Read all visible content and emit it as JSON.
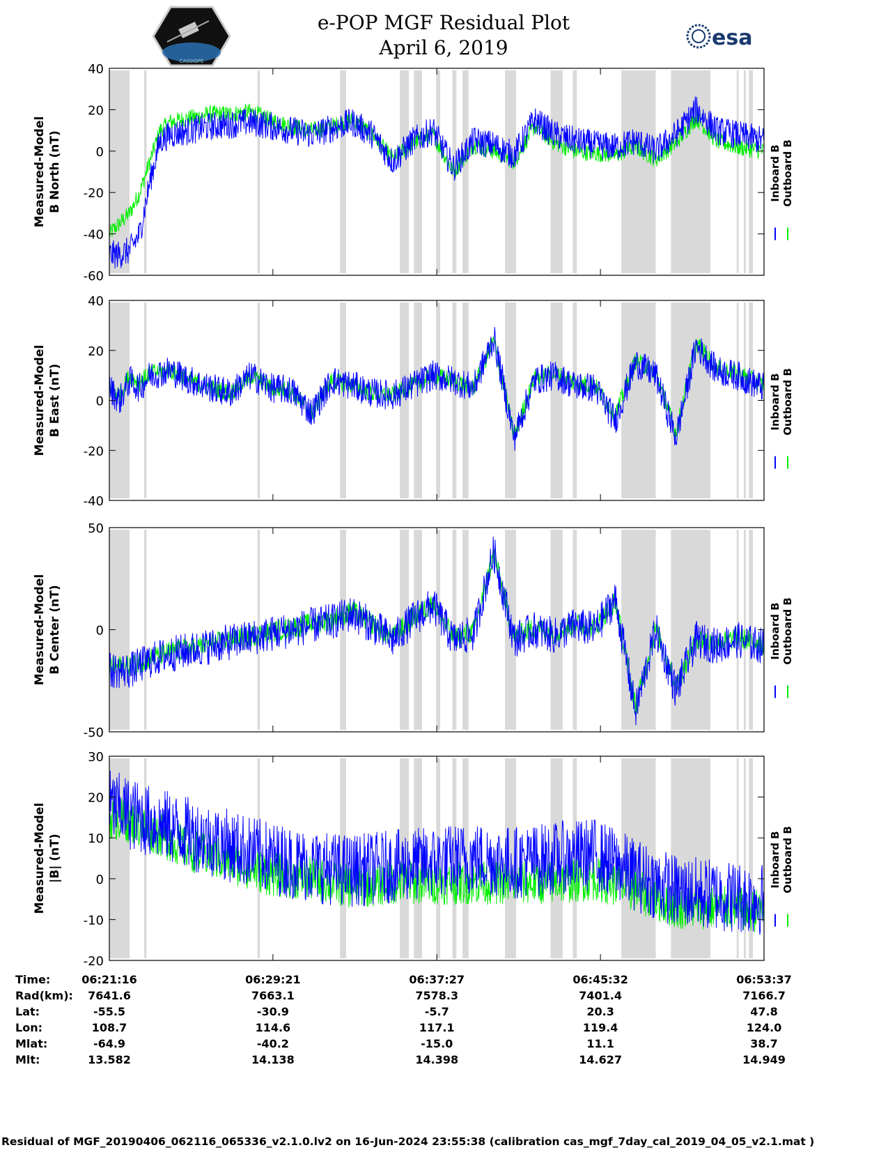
{
  "header": {
    "title": "e-POP MGF Residual Plot",
    "date": "April 6, 2019",
    "left_logo_icon": "cassiope-hexagon-logo-icon",
    "left_logo_text": "CASSIOPE",
    "right_logo_icon": "esa-logo-icon",
    "right_logo_text": "esa"
  },
  "colors": {
    "inboard": "#0000ff",
    "outboard": "#00ee00",
    "gap_shading": "#d9d9d9"
  },
  "legend": {
    "inboard": "Inboard B",
    "outboard": "Outboard B"
  },
  "chart_data": [
    {
      "type": "line",
      "ylabel_line1": "Measured-Model",
      "ylabel_line2": "B North (nT)",
      "ylim": [
        -60,
        40
      ],
      "yticks": [
        -60,
        -40,
        -20,
        0,
        20,
        40
      ],
      "ytick_labels": [
        "-60",
        "-40",
        "-20",
        "0",
        "20",
        "40"
      ],
      "xlim": [
        0,
        32.35
      ],
      "series": [
        {
          "name": "Inboard B",
          "x": [
            0,
            0.5,
            1,
            1.5,
            2,
            2.5,
            3,
            4,
            5,
            6,
            7,
            8,
            9,
            10,
            11,
            12,
            13,
            14,
            15,
            16,
            17,
            18,
            19,
            20,
            21,
            22,
            23,
            24,
            25,
            26,
            27,
            28,
            29,
            30,
            31,
            32.35
          ],
          "y": [
            -50,
            -50,
            -48,
            -40,
            -15,
            5,
            8,
            10,
            12,
            13,
            14,
            12,
            10,
            8,
            11,
            14,
            8,
            -5,
            5,
            10,
            -8,
            5,
            3,
            -2,
            15,
            8,
            5,
            3,
            2,
            5,
            0,
            8,
            20,
            10,
            8,
            5
          ]
        },
        {
          "name": "Outboard B",
          "x": [
            0,
            0.5,
            1,
            1.5,
            2,
            2.5,
            3,
            4,
            5,
            6,
            7,
            8,
            9,
            10,
            11,
            12,
            13,
            14,
            15,
            16,
            17,
            18,
            19,
            20,
            21,
            22,
            23,
            24,
            25,
            26,
            27,
            28,
            29,
            30,
            31,
            32.35
          ],
          "y": [
            -40,
            -35,
            -30,
            -20,
            -5,
            10,
            14,
            16,
            18,
            18,
            19,
            15,
            12,
            10,
            12,
            15,
            8,
            -4,
            4,
            8,
            -10,
            3,
            0,
            -5,
            12,
            4,
            0,
            -1,
            -2,
            2,
            -4,
            4,
            16,
            5,
            2,
            0
          ]
        }
      ]
    },
    {
      "type": "line",
      "ylabel_line1": "Measured-Model",
      "ylabel_line2": "B East (nT)",
      "ylim": [
        -40,
        40
      ],
      "yticks": [
        -40,
        -20,
        0,
        20,
        40
      ],
      "ytick_labels": [
        "-40",
        "-20",
        "0",
        "20",
        "40"
      ],
      "xlim": [
        0,
        32.35
      ],
      "series": [
        {
          "name": "Inboard B",
          "x": [
            0,
            0.5,
            1,
            1.5,
            2,
            3,
            4,
            5,
            6,
            7,
            8,
            9,
            10,
            11,
            12,
            13,
            14,
            15,
            16,
            17,
            18,
            19,
            20,
            21,
            22,
            23,
            24,
            25,
            26,
            27,
            28,
            29,
            30,
            31,
            32.35
          ],
          "y": [
            5,
            0,
            8,
            5,
            10,
            12,
            8,
            5,
            3,
            10,
            5,
            4,
            -5,
            8,
            6,
            3,
            2,
            6,
            10,
            8,
            5,
            25,
            -15,
            8,
            10,
            6,
            5,
            -8,
            15,
            10,
            -15,
            22,
            12,
            10,
            5
          ]
        },
        {
          "name": "Outboard B",
          "x": [
            0,
            0.5,
            1,
            1.5,
            2,
            3,
            4,
            5,
            6,
            7,
            8,
            9,
            10,
            11,
            12,
            13,
            14,
            15,
            16,
            17,
            18,
            19,
            20,
            21,
            22,
            23,
            24,
            25,
            26,
            27,
            28,
            29,
            30,
            31,
            32.35
          ],
          "y": [
            6,
            2,
            10,
            7,
            11,
            12,
            8,
            5,
            3,
            10,
            5,
            4,
            -5,
            8,
            6,
            3,
            2,
            6,
            10,
            8,
            5,
            24,
            -14,
            9,
            11,
            7,
            6,
            -6,
            16,
            11,
            -13,
            23,
            13,
            11,
            6
          ]
        }
      ]
    },
    {
      "type": "line",
      "ylabel_line1": "Measured-Model",
      "ylabel_line2": "B Center (nT)",
      "ylim": [
        -50,
        50
      ],
      "yticks": [
        -50,
        0,
        50
      ],
      "ytick_labels": [
        "-50",
        "0",
        "50"
      ],
      "xlim": [
        0,
        32.35
      ],
      "series": [
        {
          "name": "Inboard B",
          "x": [
            0,
            1,
            2,
            3,
            4,
            5,
            6,
            7,
            8,
            9,
            10,
            11,
            12,
            13,
            14,
            15,
            16,
            17,
            18,
            19,
            20,
            21,
            22,
            23,
            24,
            25,
            26,
            27,
            28,
            29,
            30,
            31,
            32.35
          ],
          "y": [
            -20,
            -20,
            -15,
            -12,
            -10,
            -8,
            -6,
            -4,
            -2,
            0,
            2,
            4,
            8,
            2,
            -5,
            5,
            12,
            -5,
            -2,
            38,
            -5,
            0,
            -3,
            2,
            0,
            15,
            -40,
            0,
            -30,
            -5,
            -8,
            -5,
            -8
          ]
        },
        {
          "name": "Outboard B",
          "x": [
            0,
            1,
            2,
            3,
            4,
            5,
            6,
            7,
            8,
            9,
            10,
            11,
            12,
            13,
            14,
            15,
            16,
            17,
            18,
            19,
            20,
            21,
            22,
            23,
            24,
            25,
            26,
            27,
            28,
            29,
            30,
            31,
            32.35
          ],
          "y": [
            -18,
            -18,
            -14,
            -11,
            -9,
            -7,
            -5,
            -3,
            -1,
            1,
            3,
            5,
            9,
            3,
            -4,
            6,
            13,
            -4,
            -1,
            37,
            -4,
            1,
            -2,
            3,
            1,
            14,
            -38,
            1,
            -28,
            -4,
            -7,
            -4,
            -7
          ]
        }
      ]
    },
    {
      "type": "line",
      "ylabel_line1": "Measured-Model",
      "ylabel_line2": "|B| (nT)",
      "ylim": [
        -20,
        30
      ],
      "yticks": [
        -20,
        -10,
        0,
        10,
        20,
        30
      ],
      "ytick_labels": [
        "-20",
        "-10",
        "0",
        "10",
        "20",
        "30"
      ],
      "xlim": [
        0,
        32.35
      ],
      "series": [
        {
          "name": "Inboard B",
          "x": [
            0,
            1,
            2,
            4,
            6,
            8,
            10,
            12,
            14,
            16,
            18,
            20,
            22,
            24,
            26,
            28,
            30,
            32.35
          ],
          "y": [
            18,
            16,
            14,
            11,
            8,
            5,
            3,
            2,
            3,
            4,
            5,
            4,
            5,
            6,
            1,
            -3,
            -4,
            -5
          ]
        },
        {
          "name": "Outboard B",
          "x": [
            0,
            1,
            2,
            4,
            6,
            8,
            10,
            12,
            14,
            16,
            18,
            20,
            22,
            24,
            26,
            28,
            30,
            32.35
          ],
          "y": [
            15,
            14,
            12,
            7,
            4,
            1,
            0,
            -2,
            -1,
            -1,
            -1,
            -1,
            -1,
            0,
            -3,
            -7,
            -7,
            -8
          ]
        }
      ]
    }
  ],
  "gaps_minutes": [
    [
      0,
      1.0
    ],
    [
      1.72,
      1.84
    ],
    [
      7.32,
      7.44
    ],
    [
      11.4,
      11.7
    ],
    [
      14.35,
      14.8
    ],
    [
      15.05,
      15.45
    ],
    [
      16.15,
      16.35
    ],
    [
      16.95,
      17.15
    ],
    [
      17.45,
      17.75
    ],
    [
      19.55,
      20.1
    ],
    [
      21.8,
      22.4
    ],
    [
      22.9,
      23.1
    ],
    [
      25.3,
      27.0
    ],
    [
      27.75,
      29.7
    ],
    [
      31.0,
      31.1
    ],
    [
      31.35,
      31.45
    ],
    [
      31.6,
      31.8
    ]
  ],
  "time_axis": {
    "start": "06:21:16",
    "end": "06:53:37",
    "tick_minutes": [
      0,
      8.083,
      16.183,
      24.267,
      32.35
    ]
  },
  "info_table": {
    "row_labels": [
      "Time:",
      "Rad(km):",
      "Lat:",
      "Lon:",
      "Mlat:",
      "Mlt:"
    ],
    "columns": [
      [
        "06:21:16",
        "7641.6",
        "-55.5",
        "108.7",
        "-64.9",
        "13.582"
      ],
      [
        "06:29:21",
        "7663.1",
        "-30.9",
        "114.6",
        "-40.2",
        "14.138"
      ],
      [
        "06:37:27",
        "7578.3",
        "-5.7",
        "117.1",
        "-15.0",
        "14.398"
      ],
      [
        "06:45:32",
        "7401.4",
        "20.3",
        "119.4",
        "11.1",
        "14.627"
      ],
      [
        "06:53:37",
        "7166.7",
        "47.8",
        "124.0",
        "38.7",
        "14.949"
      ]
    ]
  },
  "footer": "Residual of MGF_20190406_062116_065336_v2.1.0.lv2 on 16-Jun-2024 23:55:38 (calibration cas_mgf_7day_cal_2019_04_05_v2.1.mat )"
}
